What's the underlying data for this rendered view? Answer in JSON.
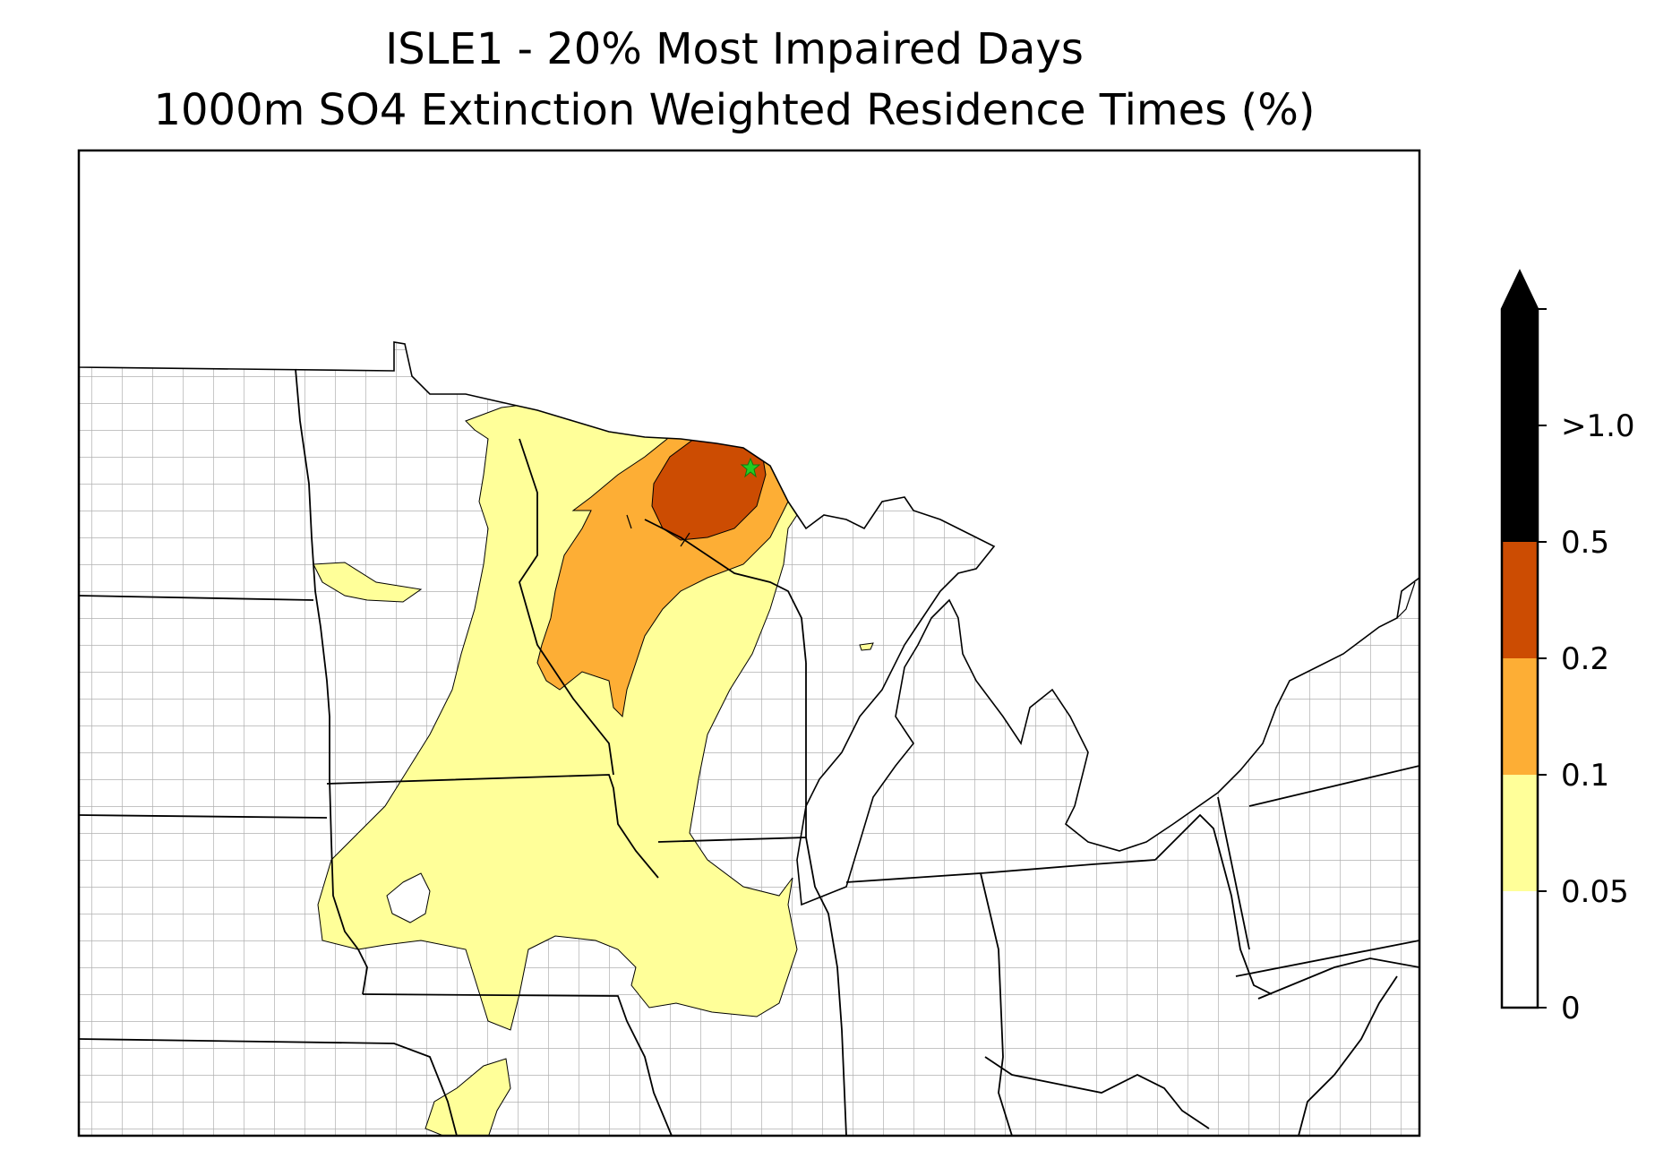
{
  "title": {
    "line1": "ISLE1 - 20% Most Impaired Days",
    "line2": "1000m SO4 Extinction Weighted Residence Times (%)"
  },
  "map": {
    "region": "Upper Midwest / Great Lakes, United States",
    "site_marker": {
      "name": "ISLE1",
      "symbol": "star-icon",
      "color": "#22cc22"
    },
    "boundary_colors": {
      "state": "#000000",
      "county": "#a8a8a8"
    }
  },
  "colorbar": {
    "extend": "max",
    "levels": [
      {
        "label": "0",
        "color": "#ffffff"
      },
      {
        "label": "0.05",
        "color": "#ffff99"
      },
      {
        "label": "0.1",
        "color": "#fdae35"
      },
      {
        "label": "0.2",
        "color": "#cc4c02"
      },
      {
        "label": "0.5",
        "color": "#660000"
      },
      {
        "label": ">1.0",
        "color": "#000000"
      }
    ]
  }
}
